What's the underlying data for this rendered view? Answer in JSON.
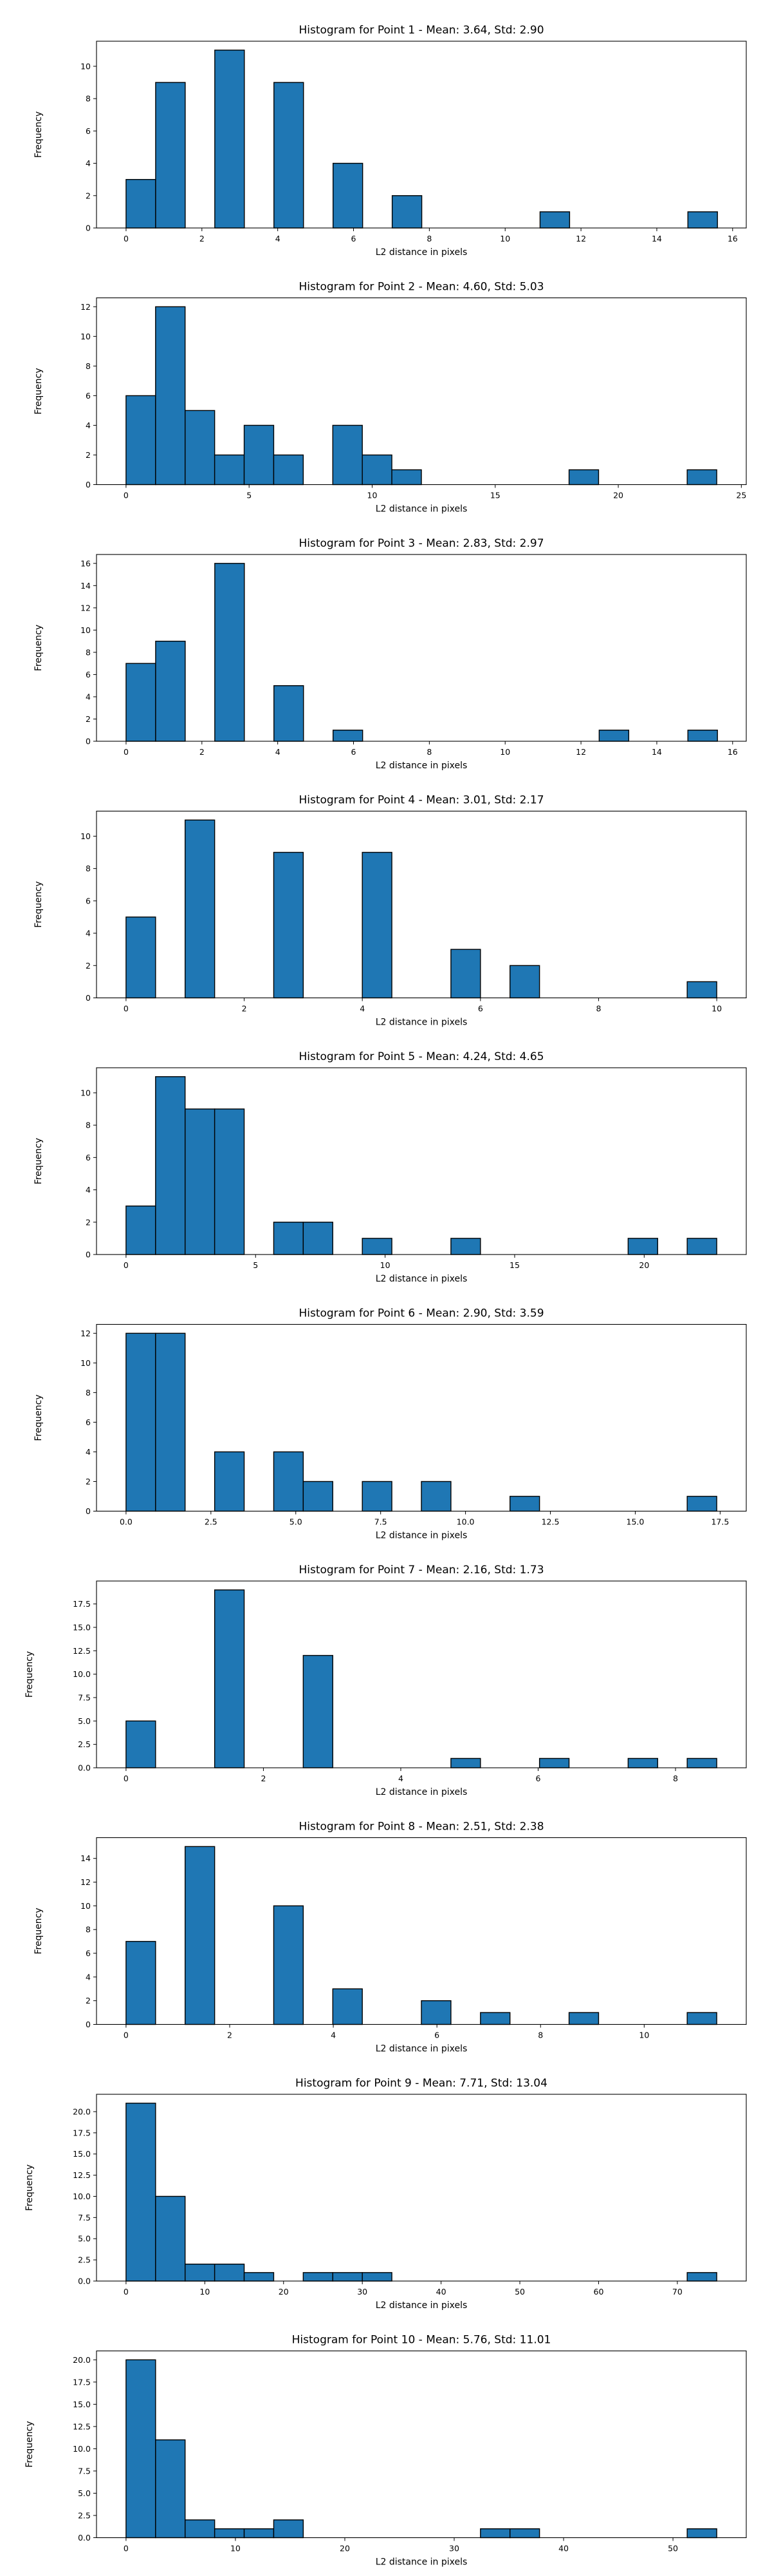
{
  "figure": {
    "background": "#ffffff",
    "bar_color": "#1f77b4",
    "edge_color": "#000000"
  },
  "chart_data": [
    {
      "type": "bar",
      "title": "Histogram for Point 1 - Mean: 3.64, Std: 2.90",
      "xlabel": "L2 distance in pixels",
      "ylabel": "Frequency",
      "xlim": [
        -0.78,
        16.36
      ],
      "ylim": [
        0,
        11.55
      ],
      "xticks": [
        {
          "v": 0,
          "l": "0"
        },
        {
          "v": 2,
          "l": "2"
        },
        {
          "v": 4,
          "l": "4"
        },
        {
          "v": 6,
          "l": "6"
        },
        {
          "v": 8,
          "l": "8"
        },
        {
          "v": 10,
          "l": "10"
        },
        {
          "v": 12,
          "l": "12"
        },
        {
          "v": 14,
          "l": "14"
        },
        {
          "v": 16,
          "l": "16"
        }
      ],
      "yticks": [
        {
          "v": 0,
          "l": "0"
        },
        {
          "v": 2,
          "l": "2"
        },
        {
          "v": 4,
          "l": "4"
        },
        {
          "v": 6,
          "l": "6"
        },
        {
          "v": 8,
          "l": "8"
        },
        {
          "v": 10,
          "l": "10"
        }
      ],
      "bins": [
        0,
        0.78,
        1.56,
        2.34,
        3.12,
        3.9,
        4.68,
        5.46,
        6.24,
        7.02,
        7.8,
        8.58,
        9.36,
        10.14,
        10.92,
        11.7,
        12.48,
        13.26,
        14.04,
        14.82,
        15.6
      ],
      "counts": [
        3,
        9,
        0,
        11,
        0,
        9,
        0,
        4,
        0,
        2,
        0,
        0,
        0,
        0,
        1,
        0,
        0,
        0,
        0,
        1
      ]
    },
    {
      "type": "bar",
      "title": "Histogram for Point 2 - Mean: 4.60, Std: 5.03",
      "xlabel": "L2 distance in pixels",
      "ylabel": "Frequency",
      "xlim": [
        -1.2,
        25.2
      ],
      "ylim": [
        0,
        12.6
      ],
      "xticks": [
        {
          "v": 0,
          "l": "0"
        },
        {
          "v": 5,
          "l": "5"
        },
        {
          "v": 10,
          "l": "10"
        },
        {
          "v": 15,
          "l": "15"
        },
        {
          "v": 20,
          "l": "20"
        },
        {
          "v": 25,
          "l": "25"
        }
      ],
      "yticks": [
        {
          "v": 0,
          "l": "0"
        },
        {
          "v": 2,
          "l": "2"
        },
        {
          "v": 4,
          "l": "4"
        },
        {
          "v": 6,
          "l": "6"
        },
        {
          "v": 8,
          "l": "8"
        },
        {
          "v": 10,
          "l": "10"
        },
        {
          "v": 12,
          "l": "12"
        }
      ],
      "bins": [
        0,
        1.2,
        2.4,
        3.6,
        4.8,
        6.0,
        7.2,
        8.4,
        9.6,
        10.8,
        12.0,
        13.2,
        14.4,
        15.6,
        16.8,
        18.0,
        19.2,
        20.4,
        21.6,
        22.8,
        24.0
      ],
      "counts": [
        6,
        12,
        5,
        2,
        4,
        2,
        0,
        4,
        2,
        1,
        0,
        0,
        0,
        0,
        0,
        1,
        0,
        0,
        0,
        1
      ]
    },
    {
      "type": "bar",
      "title": "Histogram for Point 3 - Mean: 2.83, Std: 2.97",
      "xlabel": "L2 distance in pixels",
      "ylabel": "Frequency",
      "xlim": [
        -0.78,
        16.36
      ],
      "ylim": [
        0,
        16.8
      ],
      "xticks": [
        {
          "v": 0,
          "l": "0"
        },
        {
          "v": 2,
          "l": "2"
        },
        {
          "v": 4,
          "l": "4"
        },
        {
          "v": 6,
          "l": "6"
        },
        {
          "v": 8,
          "l": "8"
        },
        {
          "v": 10,
          "l": "10"
        },
        {
          "v": 12,
          "l": "12"
        },
        {
          "v": 14,
          "l": "14"
        },
        {
          "v": 16,
          "l": "16"
        }
      ],
      "yticks": [
        {
          "v": 0,
          "l": "0"
        },
        {
          "v": 2,
          "l": "2"
        },
        {
          "v": 4,
          "l": "4"
        },
        {
          "v": 6,
          "l": "6"
        },
        {
          "v": 8,
          "l": "8"
        },
        {
          "v": 10,
          "l": "10"
        },
        {
          "v": 12,
          "l": "12"
        },
        {
          "v": 14,
          "l": "14"
        },
        {
          "v": 16,
          "l": "16"
        }
      ],
      "bins": [
        0,
        0.78,
        1.56,
        2.34,
        3.12,
        3.9,
        4.68,
        5.46,
        6.24,
        7.02,
        7.8,
        8.58,
        9.36,
        10.14,
        10.92,
        11.7,
        12.48,
        13.26,
        14.04,
        14.82,
        15.6
      ],
      "counts": [
        7,
        9,
        0,
        16,
        0,
        5,
        0,
        1,
        0,
        0,
        0,
        0,
        0,
        0,
        0,
        0,
        1,
        0,
        0,
        1
      ]
    },
    {
      "type": "bar",
      "title": "Histogram for Point 4 - Mean: 3.01, Std: 2.17",
      "xlabel": "L2 distance in pixels",
      "ylabel": "Frequency",
      "xlim": [
        -0.5,
        10.5
      ],
      "ylim": [
        0,
        11.55
      ],
      "xticks": [
        {
          "v": 0,
          "l": "0"
        },
        {
          "v": 2,
          "l": "2"
        },
        {
          "v": 4,
          "l": "4"
        },
        {
          "v": 6,
          "l": "6"
        },
        {
          "v": 8,
          "l": "8"
        },
        {
          "v": 10,
          "l": "10"
        }
      ],
      "yticks": [
        {
          "v": 0,
          "l": "0"
        },
        {
          "v": 2,
          "l": "2"
        },
        {
          "v": 4,
          "l": "4"
        },
        {
          "v": 6,
          "l": "6"
        },
        {
          "v": 8,
          "l": "8"
        },
        {
          "v": 10,
          "l": "10"
        }
      ],
      "bins": [
        0,
        0.5,
        1.0,
        1.5,
        2.0,
        2.5,
        3.0,
        3.5,
        4.0,
        4.5,
        5.0,
        5.5,
        6.0,
        6.5,
        7.0,
        7.5,
        8.0,
        8.5,
        9.0,
        9.5,
        10.0
      ],
      "counts": [
        5,
        0,
        11,
        0,
        0,
        9,
        0,
        0,
        9,
        0,
        0,
        3,
        0,
        2,
        0,
        0,
        0,
        0,
        0,
        1
      ]
    },
    {
      "type": "bar",
      "title": "Histogram for Point 5 - Mean: 4.24, Std: 4.65",
      "xlabel": "L2 distance in pixels",
      "ylabel": "Frequency",
      "xlim": [
        -1.14,
        23.94
      ],
      "ylim": [
        0,
        11.55
      ],
      "xticks": [
        {
          "v": 0,
          "l": "0"
        },
        {
          "v": 5,
          "l": "5"
        },
        {
          "v": 10,
          "l": "10"
        },
        {
          "v": 15,
          "l": "15"
        },
        {
          "v": 20,
          "l": "20"
        }
      ],
      "yticks": [
        {
          "v": 0,
          "l": "0"
        },
        {
          "v": 2,
          "l": "2"
        },
        {
          "v": 4,
          "l": "4"
        },
        {
          "v": 6,
          "l": "6"
        },
        {
          "v": 8,
          "l": "8"
        },
        {
          "v": 10,
          "l": "10"
        }
      ],
      "bins": [
        0,
        1.14,
        2.28,
        3.42,
        4.56,
        5.7,
        6.84,
        7.98,
        9.12,
        10.26,
        11.4,
        12.54,
        13.68,
        14.82,
        15.96,
        17.1,
        18.24,
        19.38,
        20.52,
        21.66,
        22.8
      ],
      "counts": [
        3,
        11,
        9,
        9,
        0,
        2,
        2,
        0,
        1,
        0,
        0,
        1,
        0,
        0,
        0,
        0,
        0,
        1,
        0,
        1
      ]
    },
    {
      "type": "bar",
      "title": "Histogram for Point 6 - Mean: 2.90, Std: 3.59",
      "xlabel": "L2 distance in pixels",
      "ylabel": "Frequency",
      "xlim": [
        -0.87,
        18.27
      ],
      "ylim": [
        0,
        12.6
      ],
      "xticks": [
        {
          "v": 0,
          "l": "0.0"
        },
        {
          "v": 2.5,
          "l": "2.5"
        },
        {
          "v": 5,
          "l": "5.0"
        },
        {
          "v": 7.5,
          "l": "7.5"
        },
        {
          "v": 10,
          "l": "10.0"
        },
        {
          "v": 12.5,
          "l": "12.5"
        },
        {
          "v": 15,
          "l": "15.0"
        },
        {
          "v": 17.5,
          "l": "17.5"
        }
      ],
      "yticks": [
        {
          "v": 0,
          "l": "0"
        },
        {
          "v": 2,
          "l": "2"
        },
        {
          "v": 4,
          "l": "4"
        },
        {
          "v": 6,
          "l": "6"
        },
        {
          "v": 8,
          "l": "8"
        },
        {
          "v": 10,
          "l": "10"
        },
        {
          "v": 12,
          "l": "12"
        }
      ],
      "bins": [
        0,
        0.87,
        1.74,
        2.61,
        3.48,
        4.35,
        5.22,
        6.09,
        6.96,
        7.83,
        8.7,
        9.57,
        10.44,
        11.31,
        12.18,
        13.05,
        13.92,
        14.79,
        15.66,
        16.53,
        17.4
      ],
      "counts": [
        12,
        12,
        0,
        4,
        0,
        4,
        2,
        0,
        2,
        0,
        2,
        0,
        0,
        1,
        0,
        0,
        0,
        0,
        0,
        1
      ]
    },
    {
      "type": "bar",
      "title": "Histogram for Point 7 - Mean: 2.16, Std: 1.73",
      "xlabel": "L2 distance in pixels",
      "ylabel": "Frequency",
      "xlim": [
        -0.43,
        9.03
      ],
      "ylim": [
        0,
        19.95
      ],
      "xticks": [
        {
          "v": 0,
          "l": "0"
        },
        {
          "v": 2,
          "l": "2"
        },
        {
          "v": 4,
          "l": "4"
        },
        {
          "v": 6,
          "l": "6"
        },
        {
          "v": 8,
          "l": "8"
        }
      ],
      "yticks": [
        {
          "v": 0,
          "l": "0.0"
        },
        {
          "v": 2.5,
          "l": "2.5"
        },
        {
          "v": 5,
          "l": "5.0"
        },
        {
          "v": 7.5,
          "l": "7.5"
        },
        {
          "v": 10,
          "l": "10.0"
        },
        {
          "v": 12.5,
          "l": "12.5"
        },
        {
          "v": 15,
          "l": "15.0"
        },
        {
          "v": 17.5,
          "l": "17.5"
        }
      ],
      "bins": [
        0,
        0.43,
        0.86,
        1.29,
        1.72,
        2.15,
        2.58,
        3.01,
        3.44,
        3.87,
        4.3,
        4.73,
        5.16,
        5.59,
        6.02,
        6.45,
        6.88,
        7.31,
        7.74,
        8.17,
        8.6
      ],
      "counts": [
        5,
        0,
        0,
        19,
        0,
        0,
        12,
        0,
        0,
        0,
        0,
        1,
        0,
        0,
        1,
        0,
        0,
        1,
        0,
        1
      ]
    },
    {
      "type": "bar",
      "title": "Histogram for Point 8 - Mean: 2.51, Std: 2.38",
      "xlabel": "L2 distance in pixels",
      "ylabel": "Frequency",
      "xlim": [
        -0.57,
        11.97
      ],
      "ylim": [
        0,
        15.75
      ],
      "xticks": [
        {
          "v": 0,
          "l": "0"
        },
        {
          "v": 2,
          "l": "2"
        },
        {
          "v": 4,
          "l": "4"
        },
        {
          "v": 6,
          "l": "6"
        },
        {
          "v": 8,
          "l": "8"
        },
        {
          "v": 10,
          "l": "10"
        }
      ],
      "yticks": [
        {
          "v": 0,
          "l": "0"
        },
        {
          "v": 2,
          "l": "2"
        },
        {
          "v": 4,
          "l": "4"
        },
        {
          "v": 6,
          "l": "6"
        },
        {
          "v": 8,
          "l": "8"
        },
        {
          "v": 10,
          "l": "10"
        },
        {
          "v": 12,
          "l": "12"
        },
        {
          "v": 14,
          "l": "14"
        }
      ],
      "bins": [
        0,
        0.57,
        1.14,
        1.71,
        2.28,
        2.85,
        3.42,
        3.99,
        4.56,
        5.13,
        5.7,
        6.27,
        6.84,
        7.41,
        7.98,
        8.55,
        9.12,
        9.69,
        10.26,
        10.83,
        11.4
      ],
      "counts": [
        7,
        0,
        15,
        0,
        0,
        10,
        0,
        3,
        0,
        0,
        2,
        0,
        1,
        0,
        0,
        1,
        0,
        0,
        0,
        1
      ]
    },
    {
      "type": "bar",
      "title": "Histogram for Point 9 - Mean: 7.71, Std: 13.04",
      "xlabel": "L2 distance in pixels",
      "ylabel": "Frequency",
      "xlim": [
        -3.75,
        78.75
      ],
      "ylim": [
        0,
        22.05
      ],
      "xticks": [
        {
          "v": 0,
          "l": "0"
        },
        {
          "v": 10,
          "l": "10"
        },
        {
          "v": 20,
          "l": "20"
        },
        {
          "v": 30,
          "l": "30"
        },
        {
          "v": 40,
          "l": "40"
        },
        {
          "v": 50,
          "l": "50"
        },
        {
          "v": 60,
          "l": "60"
        },
        {
          "v": 70,
          "l": "70"
        }
      ],
      "yticks": [
        {
          "v": 0,
          "l": "0.0"
        },
        {
          "v": 2.5,
          "l": "2.5"
        },
        {
          "v": 5,
          "l": "5.0"
        },
        {
          "v": 7.5,
          "l": "7.5"
        },
        {
          "v": 10,
          "l": "10.0"
        },
        {
          "v": 12.5,
          "l": "12.5"
        },
        {
          "v": 15,
          "l": "15.0"
        },
        {
          "v": 17.5,
          "l": "17.5"
        },
        {
          "v": 20,
          "l": "20.0"
        }
      ],
      "bins": [
        0,
        3.75,
        7.5,
        11.25,
        15.0,
        18.75,
        22.5,
        26.25,
        30.0,
        33.75,
        37.5,
        41.25,
        45.0,
        48.75,
        52.5,
        56.25,
        60.0,
        63.75,
        67.5,
        71.25,
        75.0
      ],
      "counts": [
        21,
        10,
        2,
        2,
        1,
        0,
        1,
        1,
        1,
        0,
        0,
        0,
        0,
        0,
        0,
        0,
        0,
        0,
        0,
        1
      ]
    },
    {
      "type": "bar",
      "title": "Histogram for Point 10 - Mean: 5.76, Std: 11.01",
      "xlabel": "L2 distance in pixels",
      "ylabel": "Frequency",
      "xlim": [
        -2.7,
        56.7
      ],
      "ylim": [
        0,
        21.0
      ],
      "xticks": [
        {
          "v": 0,
          "l": "0"
        },
        {
          "v": 10,
          "l": "10"
        },
        {
          "v": 20,
          "l": "20"
        },
        {
          "v": 30,
          "l": "30"
        },
        {
          "v": 40,
          "l": "40"
        },
        {
          "v": 50,
          "l": "50"
        }
      ],
      "yticks": [
        {
          "v": 0,
          "l": "0.0"
        },
        {
          "v": 2.5,
          "l": "2.5"
        },
        {
          "v": 5,
          "l": "5.0"
        },
        {
          "v": 7.5,
          "l": "7.5"
        },
        {
          "v": 10,
          "l": "10.0"
        },
        {
          "v": 12.5,
          "l": "12.5"
        },
        {
          "v": 15,
          "l": "15.0"
        },
        {
          "v": 17.5,
          "l": "17.5"
        },
        {
          "v": 20,
          "l": "20.0"
        }
      ],
      "bins": [
        0,
        2.7,
        5.4,
        8.1,
        10.8,
        13.5,
        16.2,
        18.9,
        21.6,
        24.3,
        27.0,
        29.7,
        32.4,
        35.1,
        37.8,
        40.5,
        43.2,
        45.9,
        48.6,
        51.3,
        54.0
      ],
      "counts": [
        20,
        11,
        2,
        1,
        1,
        2,
        0,
        0,
        0,
        0,
        0,
        0,
        1,
        1,
        0,
        0,
        0,
        0,
        0,
        1
      ]
    }
  ]
}
